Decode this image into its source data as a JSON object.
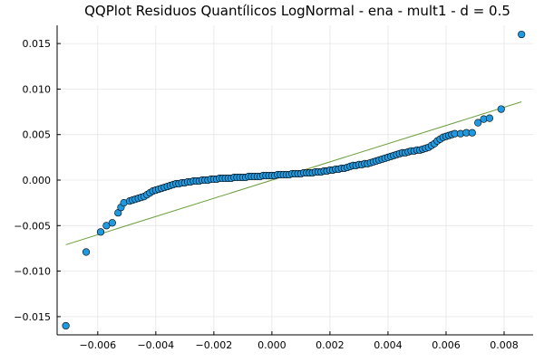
{
  "chart_data": {
    "type": "scatter",
    "title": "QQPlot Residuos Quantílicos LogNormal - ena - mult1 - d = 0.5",
    "xlabel": "",
    "ylabel": "",
    "xlim": [
      -0.0074,
      0.009
    ],
    "ylim": [
      -0.017,
      0.017
    ],
    "grid": true,
    "legend": "none",
    "x_ticks": [
      {
        "value": -0.006,
        "label": "−0.006"
      },
      {
        "value": -0.004,
        "label": "−0.004"
      },
      {
        "value": -0.002,
        "label": "−0.002"
      },
      {
        "value": 0.0,
        "label": "0.000"
      },
      {
        "value": 0.002,
        "label": "0.002"
      },
      {
        "value": 0.004,
        "label": "0.004"
      },
      {
        "value": 0.006,
        "label": "0.006"
      },
      {
        "value": 0.008,
        "label": "0.008"
      }
    ],
    "y_ticks": [
      {
        "value": -0.015,
        "label": "−0.015"
      },
      {
        "value": -0.01,
        "label": "−0.010"
      },
      {
        "value": -0.005,
        "label": "−0.005"
      },
      {
        "value": 0.0,
        "label": "0.000"
      },
      {
        "value": 0.005,
        "label": "0.005"
      },
      {
        "value": 0.01,
        "label": "0.010"
      },
      {
        "value": 0.015,
        "label": "0.015"
      }
    ],
    "reference_line": {
      "x": [
        -0.0071,
        0.0086
      ],
      "y": [
        -0.0071,
        0.0086
      ],
      "color": "#6b9e3a"
    },
    "series": [
      {
        "color": "#1f9ae0",
        "points": [
          [
            -0.0071,
            -0.016
          ],
          [
            -0.0064,
            -0.0079
          ],
          [
            -0.0059,
            -0.0057
          ],
          [
            -0.0057,
            -0.005
          ],
          [
            -0.0055,
            -0.0047
          ],
          [
            -0.0053,
            -0.0036
          ],
          [
            -0.0052,
            -0.003
          ],
          [
            -0.0051,
            -0.0025
          ],
          [
            -0.0049,
            -0.0023
          ],
          [
            -0.0048,
            -0.0022
          ],
          [
            -0.0047,
            -0.0021
          ],
          [
            -0.0046,
            -0.002
          ],
          [
            -0.0045,
            -0.0019
          ],
          [
            -0.0044,
            -0.0018
          ],
          [
            -0.0043,
            -0.0016
          ],
          [
            -0.0042,
            -0.0014
          ],
          [
            -0.0041,
            -0.0012
          ],
          [
            -0.004,
            -0.0011
          ],
          [
            -0.0039,
            -0.001
          ],
          [
            -0.0038,
            -0.0009
          ],
          [
            -0.0037,
            -0.0008
          ],
          [
            -0.0036,
            -0.0007
          ],
          [
            -0.0035,
            -0.0006
          ],
          [
            -0.0034,
            -0.0005
          ],
          [
            -0.0033,
            -0.0004
          ],
          [
            -0.0032,
            -0.0004
          ],
          [
            -0.0031,
            -0.0003
          ],
          [
            -0.003,
            -0.0003
          ],
          [
            -0.0029,
            -0.0002
          ],
          [
            -0.0028,
            -0.0002
          ],
          [
            -0.0027,
            -0.0001
          ],
          [
            -0.0026,
            -0.0001
          ],
          [
            -0.0025,
            -0.0001
          ],
          [
            -0.0024,
            0.0
          ],
          [
            -0.0023,
            0.0
          ],
          [
            -0.0022,
            0.0
          ],
          [
            -0.0021,
            0.0001
          ],
          [
            -0.002,
            0.0001
          ],
          [
            -0.0019,
            0.0001
          ],
          [
            -0.0018,
            0.0002
          ],
          [
            -0.0017,
            0.0002
          ],
          [
            -0.0016,
            0.0002
          ],
          [
            -0.0015,
            0.0002
          ],
          [
            -0.0014,
            0.0002
          ],
          [
            -0.0013,
            0.0003
          ],
          [
            -0.0012,
            0.0003
          ],
          [
            -0.0011,
            0.0003
          ],
          [
            -0.001,
            0.0003
          ],
          [
            -0.0009,
            0.0003
          ],
          [
            -0.0008,
            0.0004
          ],
          [
            -0.0007,
            0.0004
          ],
          [
            -0.0006,
            0.0004
          ],
          [
            -0.0005,
            0.0004
          ],
          [
            -0.0004,
            0.0004
          ],
          [
            -0.0003,
            0.0005
          ],
          [
            -0.0002,
            0.0005
          ],
          [
            -0.0001,
            0.0005
          ],
          [
            0.0,
            0.0005
          ],
          [
            0.0001,
            0.0005
          ],
          [
            0.0002,
            0.0006
          ],
          [
            0.0003,
            0.0006
          ],
          [
            0.0004,
            0.0006
          ],
          [
            0.0005,
            0.0006
          ],
          [
            0.0006,
            0.0006
          ],
          [
            0.0007,
            0.0007
          ],
          [
            0.0008,
            0.0007
          ],
          [
            0.0009,
            0.0007
          ],
          [
            0.001,
            0.0007
          ],
          [
            0.0011,
            0.0008
          ],
          [
            0.0012,
            0.0008
          ],
          [
            0.0013,
            0.0008
          ],
          [
            0.0014,
            0.0008
          ],
          [
            0.0015,
            0.0009
          ],
          [
            0.0016,
            0.0009
          ],
          [
            0.0017,
            0.0009
          ],
          [
            0.0018,
            0.001
          ],
          [
            0.0019,
            0.001
          ],
          [
            0.002,
            0.0011
          ],
          [
            0.0021,
            0.0011
          ],
          [
            0.0022,
            0.0012
          ],
          [
            0.0023,
            0.0012
          ],
          [
            0.0024,
            0.0013
          ],
          [
            0.0025,
            0.0013
          ],
          [
            0.0026,
            0.0014
          ],
          [
            0.0027,
            0.0015
          ],
          [
            0.0028,
            0.0016
          ],
          [
            0.0029,
            0.0016
          ],
          [
            0.003,
            0.0017
          ],
          [
            0.0031,
            0.0017
          ],
          [
            0.0032,
            0.0018
          ],
          [
            0.0033,
            0.0018
          ],
          [
            0.0034,
            0.0019
          ],
          [
            0.0035,
            0.002
          ],
          [
            0.0036,
            0.0021
          ],
          [
            0.0037,
            0.0022
          ],
          [
            0.0038,
            0.0023
          ],
          [
            0.0039,
            0.0024
          ],
          [
            0.004,
            0.0025
          ],
          [
            0.0041,
            0.0026
          ],
          [
            0.0042,
            0.0027
          ],
          [
            0.0043,
            0.0028
          ],
          [
            0.0044,
            0.0029
          ],
          [
            0.0045,
            0.003
          ],
          [
            0.0046,
            0.003
          ],
          [
            0.0047,
            0.0031
          ],
          [
            0.0048,
            0.0032
          ],
          [
            0.0049,
            0.0032
          ],
          [
            0.005,
            0.0033
          ],
          [
            0.0051,
            0.0033
          ],
          [
            0.0052,
            0.0034
          ],
          [
            0.0053,
            0.0035
          ],
          [
            0.0054,
            0.0036
          ],
          [
            0.0055,
            0.0038
          ],
          [
            0.0056,
            0.004
          ],
          [
            0.0057,
            0.0043
          ],
          [
            0.0058,
            0.0045
          ],
          [
            0.0059,
            0.0047
          ],
          [
            0.006,
            0.0048
          ],
          [
            0.0061,
            0.0049
          ],
          [
            0.0062,
            0.005
          ],
          [
            0.0063,
            0.0051
          ],
          [
            0.0065,
            0.0051
          ],
          [
            0.0067,
            0.0052
          ],
          [
            0.0069,
            0.0052
          ],
          [
            0.0071,
            0.0063
          ],
          [
            0.0073,
            0.0067
          ],
          [
            0.0075,
            0.0068
          ],
          [
            0.0079,
            0.0078
          ],
          [
            0.0086,
            0.016
          ]
        ]
      }
    ]
  }
}
